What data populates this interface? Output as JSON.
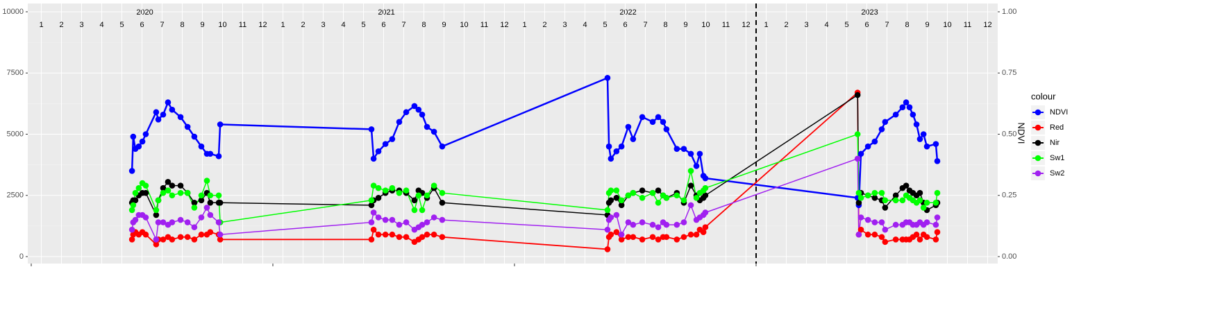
{
  "chart_data": {
    "type": "line",
    "x": [
      2020.417,
      2020.422,
      2020.431,
      2020.445,
      2020.46,
      2020.474,
      2020.517,
      2020.526,
      2020.546,
      2020.566,
      2020.583,
      2020.618,
      2020.647,
      2020.675,
      2020.704,
      2020.727,
      2020.741,
      2020.776,
      2020.782,
      2021.408,
      2021.417,
      2021.437,
      2021.466,
      2021.494,
      2021.523,
      2021.552,
      2021.586,
      2021.603,
      2021.618,
      2021.638,
      2021.667,
      2021.701,
      2022.385,
      2022.391,
      2022.399,
      2022.422,
      2022.443,
      2022.471,
      2022.491,
      2022.529,
      2022.572,
      2022.595,
      2022.615,
      2022.629,
      2022.672,
      2022.701,
      2022.73,
      2022.753,
      2022.767,
      2022.782,
      2022.79,
      2023.42,
      2023.425,
      2023.434,
      2023.463,
      2023.491,
      2023.52,
      2023.534,
      2023.578,
      2023.606,
      2023.621,
      2023.635,
      2023.649,
      2023.664,
      2023.678,
      2023.693,
      2023.707,
      2023.744,
      2023.75
    ],
    "series": [
      {
        "name": "NDVI",
        "color": "#0000ff",
        "axis": "y2",
        "values": [
          0.35,
          0.49,
          0.44,
          0.45,
          0.47,
          0.5,
          0.59,
          0.56,
          0.58,
          0.63,
          0.6,
          0.57,
          0.53,
          0.49,
          0.45,
          0.42,
          0.42,
          0.41,
          0.54,
          0.52,
          0.4,
          0.43,
          0.46,
          0.48,
          0.55,
          0.59,
          0.615,
          0.6,
          0.58,
          0.53,
          0.51,
          0.45,
          0.73,
          0.45,
          0.4,
          0.43,
          0.45,
          0.53,
          0.48,
          0.57,
          0.55,
          0.57,
          0.55,
          0.52,
          0.44,
          0.44,
          0.42,
          0.37,
          0.42,
          0.33,
          0.32,
          0.24,
          0.21,
          0.42,
          0.45,
          0.47,
          0.52,
          0.55,
          0.58,
          0.61,
          0.63,
          0.61,
          0.58,
          0.54,
          0.48,
          0.5,
          0.45,
          0.46,
          0.39
        ]
      },
      {
        "name": "Red",
        "color": "#ff0000",
        "values": [
          700,
          900,
          1000,
          900,
          1000,
          900,
          500,
          700,
          700,
          800,
          700,
          800,
          800,
          700,
          900,
          900,
          1000,
          900,
          700,
          700,
          1100,
          900,
          900,
          900,
          800,
          800,
          600,
          700,
          800,
          900,
          900,
          800,
          300,
          800,
          900,
          1000,
          700,
          800,
          800,
          700,
          800,
          700,
          800,
          800,
          700,
          800,
          900,
          900,
          1100,
          1000,
          1200,
          6700,
          900,
          1100,
          900,
          900,
          800,
          600,
          700,
          700,
          700,
          700,
          800,
          900,
          700,
          900,
          800,
          700,
          1000
        ]
      },
      {
        "name": "Nir",
        "color": "#000000",
        "values": [
          2200,
          2300,
          2300,
          2500,
          2600,
          2600,
          1700,
          2300,
          2800,
          3050,
          2900,
          2900,
          2600,
          2200,
          2300,
          2600,
          2200,
          2200,
          2200,
          2100,
          2300,
          2400,
          2600,
          2700,
          2700,
          2600,
          2300,
          2700,
          2600,
          2400,
          2800,
          2200,
          1700,
          2200,
          2300,
          2400,
          2100,
          2500,
          2600,
          2700,
          2600,
          2700,
          2500,
          2400,
          2600,
          2200,
          2900,
          2500,
          2300,
          2400,
          2500,
          6600,
          2200,
          2600,
          2500,
          2400,
          2300,
          2000,
          2500,
          2800,
          2900,
          2700,
          2600,
          2500,
          2600,
          2200,
          1900,
          2100,
          2200
        ]
      },
      {
        "name": "Sw1",
        "color": "#00ff00",
        "values": [
          1900,
          2100,
          2600,
          2800,
          3000,
          2900,
          1900,
          2300,
          2600,
          2700,
          2500,
          2600,
          2600,
          2000,
          2500,
          3100,
          2500,
          2500,
          1400,
          2300,
          2900,
          2800,
          2700,
          2800,
          2600,
          2700,
          1900,
          2500,
          1900,
          2500,
          2900,
          2600,
          1900,
          2600,
          2700,
          2700,
          2300,
          2500,
          2600,
          2400,
          2600,
          2200,
          2500,
          2400,
          2500,
          2300,
          3500,
          2400,
          2600,
          2700,
          2800,
          5000,
          2600,
          2400,
          2500,
          2600,
          2600,
          2300,
          2300,
          2300,
          2500,
          2400,
          2300,
          2200,
          2300,
          2000,
          2200,
          2200,
          2600
        ]
      },
      {
        "name": "Sw2",
        "color": "#a020f0",
        "values": [
          1100,
          1400,
          1500,
          1700,
          1700,
          1600,
          700,
          1400,
          1400,
          1300,
          1400,
          1500,
          1400,
          1200,
          1600,
          2000,
          1700,
          1400,
          900,
          1400,
          1800,
          1600,
          1500,
          1500,
          1300,
          1400,
          1100,
          1200,
          1300,
          1400,
          1600,
          1500,
          1100,
          1500,
          1600,
          1700,
          900,
          1400,
          1300,
          1400,
          1300,
          1200,
          1400,
          1300,
          1300,
          1400,
          2100,
          1500,
          1600,
          1700,
          1800,
          4000,
          900,
          1600,
          1500,
          1400,
          1400,
          1100,
          1300,
          1300,
          1400,
          1400,
          1300,
          1300,
          1400,
          1300,
          1400,
          1300,
          1600
        ]
      }
    ],
    "xlim": [
      2020,
      2024
    ],
    "xticks": [
      2020,
      2021,
      2022,
      2023
    ],
    "months": [
      1,
      2,
      3,
      4,
      5,
      6,
      7,
      8,
      9,
      10,
      11,
      12
    ],
    "ylim": [
      0,
      10000
    ],
    "yticks": [
      0,
      2500,
      5000,
      7500,
      10000
    ],
    "y2lim": [
      0,
      1
    ],
    "y2ticks": [
      {
        "value": 0,
        "label": "0.00"
      },
      {
        "value": 0.25,
        "label": "0.25"
      },
      {
        "value": 0.5,
        "label": "0.50"
      },
      {
        "value": 0.75,
        "label": "0.75"
      },
      {
        "value": 1,
        "label": "1.00"
      }
    ],
    "y2label": "NDVI",
    "legend_title": "colour",
    "vline": 2023,
    "grid": true
  }
}
